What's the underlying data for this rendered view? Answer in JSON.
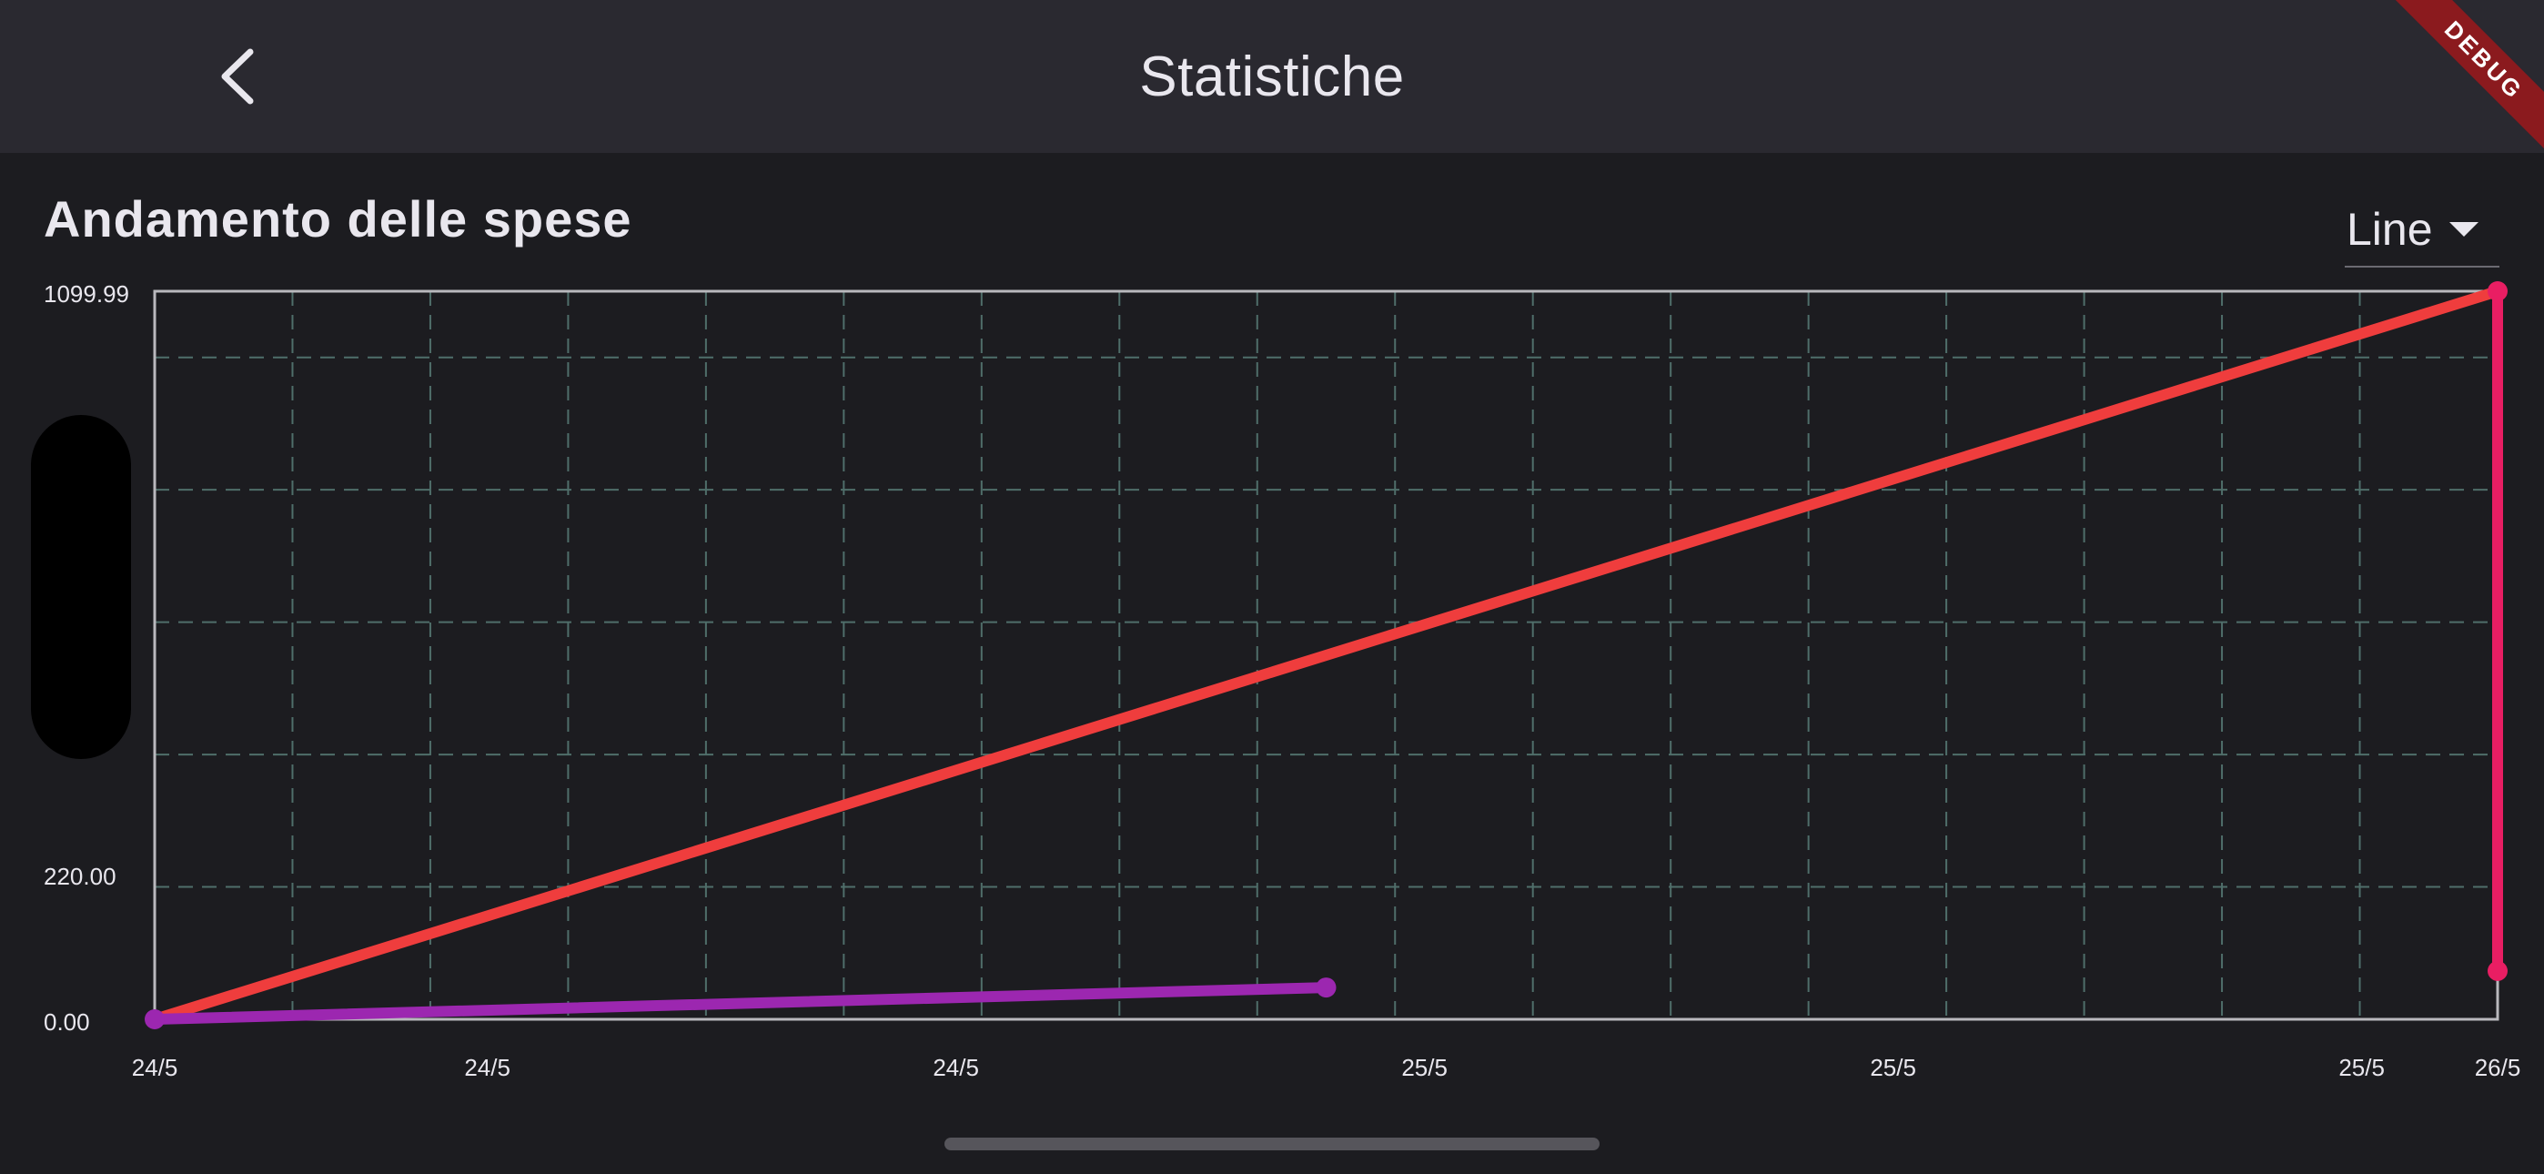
{
  "app": {
    "title": "Statistiche",
    "debug_banner": "DEBUG"
  },
  "section": {
    "title": "Andamento delle spese"
  },
  "chart_type_select": {
    "value": "Line"
  },
  "icons": {
    "back": "chevron-left-icon",
    "dropdown": "caret-down-icon"
  },
  "colors": {
    "background": "#1c1c20",
    "appbar": "#2a2930",
    "grid": "#4f6e6a",
    "series_red": "#ef3d3d",
    "series_purple": "#9c27b0",
    "series_pink": "#e91e63"
  },
  "chart_data": {
    "type": "line",
    "ylim": [
      0,
      1099.99
    ],
    "y_tick_labels": [
      "1099.99",
      "220.00",
      "0.00"
    ],
    "y_ticks": [
      1099.99,
      220.0,
      0.0
    ],
    "x_tick_labels": [
      "24/5",
      "24/5",
      "24/5",
      "25/5",
      "25/5",
      "25/5",
      "26/5"
    ],
    "x_tick_positions": [
      0,
      0.142,
      0.342,
      0.542,
      0.742,
      0.942,
      1.0
    ],
    "xlim": [
      0,
      1
    ],
    "grid": true,
    "legend": "none",
    "series": [
      {
        "color": "#ef3d3d",
        "points": [
          {
            "x": 0,
            "y": 0
          },
          {
            "x": 1.0,
            "y": 1099.99
          }
        ],
        "show_dots": false
      },
      {
        "color": "#9c27b0",
        "points": [
          {
            "x": 0,
            "y": 0
          },
          {
            "x": 0.5,
            "y": 48
          }
        ],
        "show_dots": true
      },
      {
        "color": "#e91e63",
        "points": [
          {
            "x": 1.0,
            "y": 1099.99
          },
          {
            "x": 1.0,
            "y": 73
          }
        ],
        "show_dots": true
      }
    ]
  }
}
